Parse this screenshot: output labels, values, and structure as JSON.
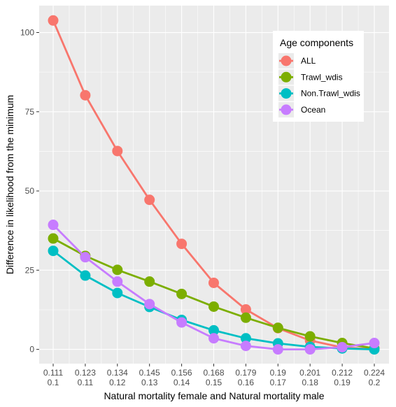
{
  "chart_data": {
    "type": "line",
    "x_labels": [
      [
        "0.111",
        "0.1"
      ],
      [
        "0.123",
        "0.11"
      ],
      [
        "0.134",
        "0.12"
      ],
      [
        "0.145",
        "0.13"
      ],
      [
        "0.156",
        "0.14"
      ],
      [
        "0.168",
        "0.15"
      ],
      [
        "0.179",
        "0.16"
      ],
      [
        "0.19",
        "0.17"
      ],
      [
        "0.201",
        "0.18"
      ],
      [
        "0.212",
        "0.19"
      ],
      [
        "0.224",
        "0.2"
      ]
    ],
    "xlabel": "Natural mortality female and Natural mortality male",
    "ylabel": "Difference in likelihood from the minimum",
    "ylim": [
      -4.5,
      108.5
    ],
    "yticks": [
      0,
      25,
      50,
      75,
      100
    ],
    "grid": true,
    "legend": {
      "title": "Age components",
      "position": "top-right"
    },
    "series": [
      {
        "name": "ALL",
        "color": "#F8766D",
        "values": [
          103.8,
          80.2,
          62.6,
          47.2,
          33.3,
          21.0,
          12.6,
          6.7,
          2.8,
          0.6,
          0.1
        ]
      },
      {
        "name": "Trawl_wdis",
        "color": "#7CAE00",
        "values": [
          35.0,
          29.5,
          25.1,
          21.4,
          17.5,
          13.5,
          10.0,
          6.8,
          4.1,
          2.0,
          0.3
        ]
      },
      {
        "name": "Non.Trawl_wdis",
        "color": "#00BFC4",
        "values": [
          31.1,
          23.3,
          17.8,
          13.4,
          9.3,
          6.0,
          3.5,
          1.9,
          0.8,
          0.3,
          0.0
        ]
      },
      {
        "name": "Ocean",
        "color": "#C77CFF",
        "values": [
          39.3,
          29.1,
          21.4,
          14.3,
          8.5,
          3.5,
          1.1,
          0.0,
          0.0,
          0.7,
          2.0
        ]
      }
    ]
  }
}
